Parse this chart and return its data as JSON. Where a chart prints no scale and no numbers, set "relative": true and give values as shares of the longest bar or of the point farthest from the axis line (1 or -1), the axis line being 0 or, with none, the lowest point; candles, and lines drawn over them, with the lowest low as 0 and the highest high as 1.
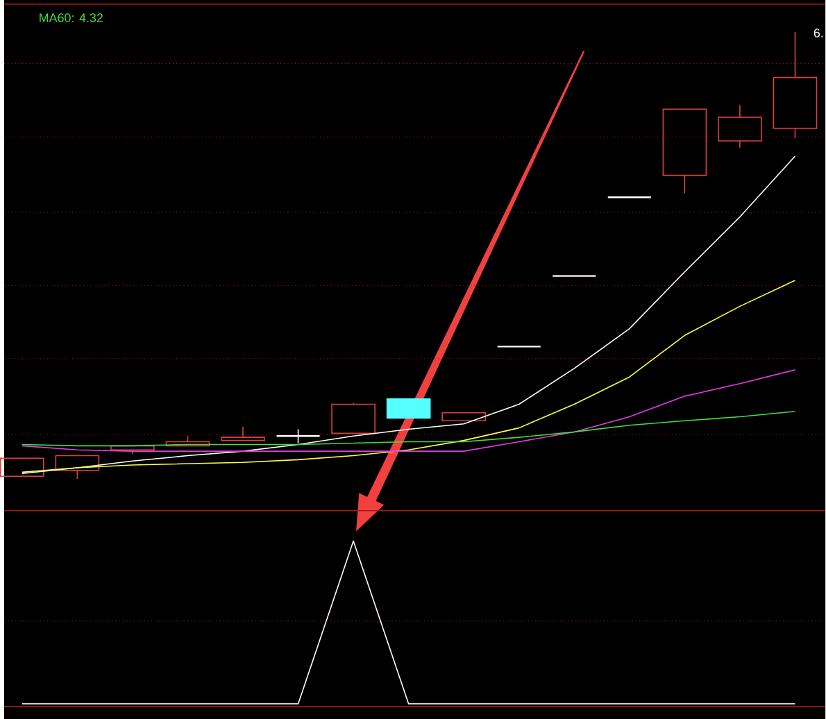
{
  "chart_data": [
    {
      "type": "candlestick",
      "relative": true,
      "ref_lines": [
        {
          "axis": "y",
          "value": 0.929,
          "color": "#a01818",
          "line_style": "dotted"
        },
        {
          "axis": "y",
          "value": 0.765,
          "color": "#a01818",
          "line_style": "dotted"
        },
        {
          "axis": "y",
          "value": 0.596,
          "color": "#a01818",
          "line_style": "dotted"
        },
        {
          "axis": "y",
          "value": 0.432,
          "color": "#a01818",
          "line_style": "dotted"
        },
        {
          "axis": "y",
          "value": 0.269,
          "color": "#a01818",
          "line_style": "dotted"
        },
        {
          "axis": "y",
          "value": 0.099,
          "color": "#a01818",
          "line_style": "dotted"
        }
      ],
      "categories": [
        null,
        null,
        null,
        null,
        null,
        null,
        null,
        null,
        null,
        null,
        null,
        null,
        null,
        null,
        null
      ],
      "ohlc": [
        [
          0.006,
          0.046,
          0.006,
          0.046
        ],
        [
          0.019,
          0.052,
          0,
          0.052
        ],
        [
          0.065,
          0.074,
          0.056,
          0.074
        ],
        [
          0.074,
          0.096,
          0.074,
          0.083
        ],
        [
          0.086,
          0.117,
          0.086,
          0.093
        ],
        [
          0.096,
          0.111,
          0.08,
          0.096
        ],
        [
          0.102,
          0.17,
          0.102,
          0.167
        ],
        [
          0.179,
          0.179,
          0.136,
          0.136
        ],
        [
          0.13,
          0.148,
          0.13,
          0.148
        ],
        [
          0.296,
          0.296,
          0.296,
          0.296
        ],
        [
          0.454,
          0.454,
          0.454,
          0.454
        ],
        [
          0.63,
          0.63,
          0.63,
          0.63
        ],
        [
          0.679,
          0.827,
          0.639,
          0.827
        ],
        [
          0.756,
          0.836,
          0.741,
          0.809
        ],
        [
          0.784,
          1,
          0.762,
          0.898
        ]
      ],
      "colors": [
        "#e04040",
        "#e04040",
        "#e04040",
        "#e04040",
        "#e04040",
        "#ffffff",
        "#e04040",
        "#54ffff",
        "#e04040",
        "#ffffff",
        "#ffffff",
        "#ffffff",
        "#e04040",
        "#e04040",
        "#e04040"
      ],
      "series": [
        {
          "type": "line",
          "color": "#ffffff",
          "values": [
            0.012,
            0.025,
            0.04,
            0.052,
            0.062,
            0.077,
            0.096,
            0.111,
            0.123,
            0.167,
            0.247,
            0.336,
            0.463,
            0.586,
            0.722
          ]
        },
        {
          "type": "line",
          "color": "#ffff40",
          "values": [
            0.015,
            0.025,
            0.031,
            0.034,
            0.037,
            0.043,
            0.052,
            0.065,
            0.086,
            0.114,
            0.167,
            0.228,
            0.321,
            0.386,
            0.444
          ]
        },
        {
          "type": "line",
          "color": "#e040e0",
          "values": [
            0.074,
            0.065,
            0.062,
            0.062,
            0.062,
            0.062,
            0.062,
            0.062,
            0.062,
            0.083,
            0.105,
            0.139,
            0.185,
            0.213,
            0.244
          ]
        },
        {
          "type": "line",
          "color": "#40e040",
          "values": [
            0.077,
            0.074,
            0.074,
            0.077,
            0.077,
            0.077,
            0.08,
            0.083,
            0.083,
            0.093,
            0.105,
            0.12,
            0.13,
            0.139,
            0.151
          ]
        }
      ],
      "annotations": [
        "MA60: 4.32",
        "6."
      ]
    },
    {
      "type": "line",
      "relative": true,
      "ref_lines": [
        {
          "axis": "y",
          "value": 0.508,
          "color": "#a01818",
          "line_style": "dotted"
        }
      ],
      "categories": [
        null,
        null,
        null,
        null,
        null,
        null,
        null,
        null,
        null,
        null,
        null,
        null,
        null,
        null,
        null
      ],
      "series": [
        {
          "color": "#ffffff",
          "values": [
            0,
            0,
            0,
            0,
            0,
            0,
            1,
            0,
            0,
            0,
            0,
            0,
            0,
            0,
            0
          ]
        }
      ]
    }
  ]
}
